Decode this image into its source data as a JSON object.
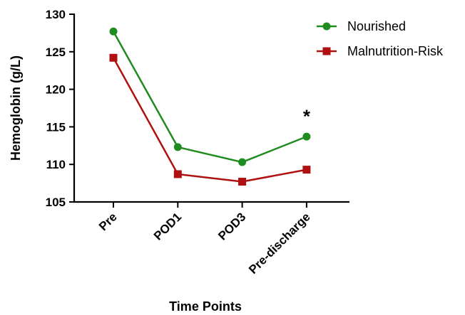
{
  "chart_data": {
    "type": "line",
    "categories": [
      "Pre",
      "POD1",
      "POD3",
      "Pre-discharge"
    ],
    "series": [
      {
        "name": "Nourished",
        "values": [
          127.7,
          112.3,
          110.3,
          113.7
        ],
        "color": "#1e8c1e",
        "marker": "circle"
      },
      {
        "name": "Malnutrition-Risk",
        "values": [
          124.2,
          108.7,
          107.7,
          109.3
        ],
        "color": "#b01010",
        "marker": "square"
      }
    ],
    "title": "",
    "xlabel": "Time Points",
    "ylabel": "Hemoglobin (g/L)",
    "ylim": [
      105,
      130
    ],
    "yticks": [
      105,
      110,
      115,
      120,
      125,
      130
    ],
    "grid": false,
    "legend_position": "top-right",
    "annotations": [
      {
        "text": "*",
        "category": "Pre-discharge",
        "y": 116.5
      }
    ]
  }
}
